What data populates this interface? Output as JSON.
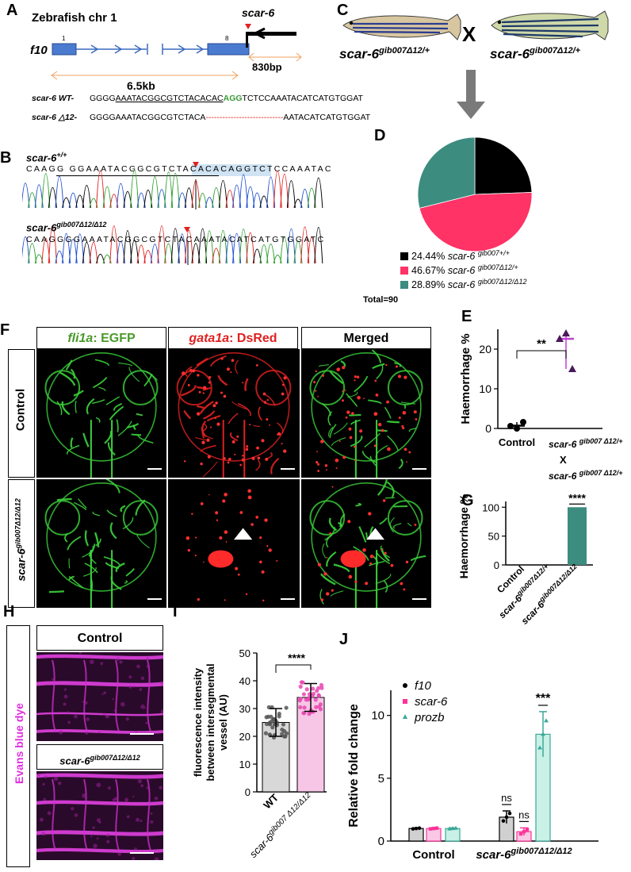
{
  "panels": {
    "A": "A",
    "B": "B",
    "C": "C",
    "D": "D",
    "E": "E",
    "F": "F",
    "G": "G",
    "H": "H",
    "I": "I",
    "J": "J"
  },
  "panelA": {
    "title": "Zebrafish chr 1",
    "gene_f10": "f10",
    "gene_scar6": "scar-6",
    "exon1": "1",
    "exon8": "8",
    "dist1": "6.5kb",
    "dist2": "830bp",
    "wt_label": "scar-6 WT-",
    "wt_seq_prefix": "GGGG",
    "wt_seq_underlined": "AAATACGGCGTCTACACAC",
    "wt_seq_pam": "AGG",
    "wt_seq_suffix": "TCTCCAAATACATCATGTGGAT",
    "del_label": "scar-6 △12-",
    "del_seq_prefix": "GGGGAAATACGGCGTCTACA",
    "del_dashes": "----------------------------",
    "del_seq_suffix": "AATACATCATGTGGAT"
  },
  "panelB": {
    "wt_label": "scar-6",
    "wt_sup": "+/+",
    "wt_seq": "CAAGG GGAAATACGGCGTCTACACACAGGTCTCCAAATAC",
    "mut_label": "scar-6",
    "mut_sup": "gib007Δ12/Δ12",
    "mut_seq": "CAAGGGGAAATACGGCGTCTACAAATACATCATGTGGATC"
  },
  "panelC": {
    "left": "scar-6",
    "left_sup": "gib007Δ12/+",
    "cross": "X",
    "right": "scar-6",
    "right_sup": "gib007Δ12/+"
  },
  "panelD": {
    "legend": [
      {
        "pct": "24.44%",
        "name": "scar-6",
        "sup": "gib007+/+",
        "color": "#000000",
        "value": 24.44
      },
      {
        "pct": "46.67%",
        "name": "scar-6",
        "sup": "gib007Δ12/+",
        "color": "#ff3366",
        "value": 46.67
      },
      {
        "pct": "28.89%",
        "name": "scar-6",
        "sup": "gib007Δ12/Δ12",
        "color": "#3d8c80",
        "value": 28.89
      }
    ],
    "total": "Total=90"
  },
  "panelF": {
    "col1a": "fli1a",
    "col1b": ": EGFP",
    "col2a": "gata1a",
    "col2b": ": DsRed",
    "col3": "Merged",
    "row1": "Control",
    "row2": "scar-6",
    "row2_sup": "gib007Δ12/Δ12"
  },
  "panelH": {
    "side": "Evans blue dye",
    "top": "Control",
    "bottom": "scar-6",
    "bottom_sup": "gib007Δ12/Δ12"
  },
  "chart_data": [
    {
      "id": "E",
      "type": "scatter",
      "ylabel": "Haemorrhage %",
      "ylim": [
        0,
        25
      ],
      "yticks": [
        "0",
        "10",
        "20"
      ],
      "categories": [
        "Control",
        "scar-6 gib007Δ12/+ X scar-6 gib007Δ12/+"
      ],
      "cat_labels": [
        {
          "name": "Control"
        },
        {
          "name": "scar-6",
          "sup": "gib007 Δ12/+",
          "x": "X",
          "name2": "scar-6",
          "sup2": "gib007 Δ12/+"
        }
      ],
      "series": [
        {
          "values": [
            [
              0.6,
              0.0,
              1.6
            ],
            [
              22.6,
              24.0,
              15.0
            ]
          ]
        }
      ],
      "means": [
        0.7,
        22.6
      ],
      "significance": "**"
    },
    {
      "id": "G",
      "type": "bar",
      "ylabel": "Haemorrhage %",
      "ylim": [
        0,
        110
      ],
      "yticks": [
        "0",
        "50",
        "100"
      ],
      "categories": [
        "Control",
        "scar-6 gib007Δ12/+",
        "scar-6 gib007Δ12/Δ12"
      ],
      "cat_labels": [
        {
          "name": "Control"
        },
        {
          "name": "scar-6",
          "sup": "gib007Δ12/+"
        },
        {
          "name": "scar-6",
          "sup": "gib007Δ12/Δ12"
        }
      ],
      "values": [
        0,
        0,
        100
      ],
      "significance": "****"
    },
    {
      "id": "I",
      "type": "bar",
      "ylabel_lines": [
        "fluorescence intensity",
        "between intersegmental",
        "vessel (AU)"
      ],
      "ylim": [
        0,
        50
      ],
      "yticks": [
        "0",
        "10",
        "20",
        "30",
        "40",
        "50"
      ],
      "categories": [
        "WT",
        "scar-6 gib007 Δ12/Δ12"
      ],
      "cat_labels": [
        {
          "name": "WT"
        },
        {
          "name": "scar-6",
          "sup": "gib007 Δ12/Δ12"
        }
      ],
      "values": [
        25,
        34
      ],
      "errors": [
        5,
        5
      ],
      "significance": "****"
    },
    {
      "id": "J",
      "type": "bar",
      "ylabel": "Relative fold change",
      "ylim": [
        0,
        12
      ],
      "yticks": [
        "0",
        "5",
        "10"
      ],
      "categories": [
        "Control",
        "scar-6 gib007Δ12/Δ12"
      ],
      "cat_labels": [
        {
          "name": "Control"
        },
        {
          "name": "scar-6",
          "sup": "gib007Δ12/Δ12"
        }
      ],
      "series": [
        {
          "name": "f10",
          "values": [
            1.0,
            1.9
          ],
          "errors": [
            0.05,
            0.5
          ],
          "color": "#000000"
        },
        {
          "name": "scar-6",
          "values": [
            1.0,
            0.75
          ],
          "errors": [
            0.05,
            0.3
          ],
          "color": "#ff3399"
        },
        {
          "name": "prozb",
          "values": [
            1.0,
            8.5
          ],
          "errors": [
            0.05,
            1.8
          ],
          "color": "#3aa899"
        }
      ],
      "annotations": [
        "ns",
        "ns",
        "***"
      ]
    }
  ]
}
